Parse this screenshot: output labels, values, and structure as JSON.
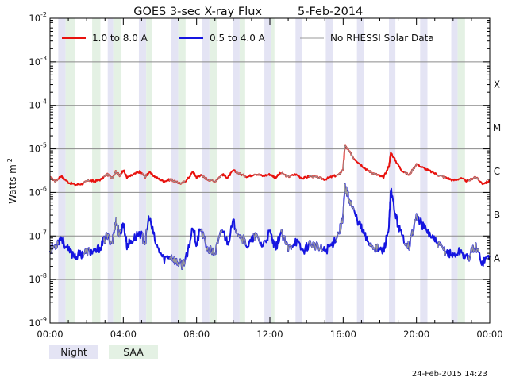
{
  "chart_data": {
    "type": "line",
    "title": "GOES 3-sec X-ray Flux",
    "date": "5-Feb-2014",
    "ylabel": "Watts m",
    "ylabel_exp": "-2",
    "yscale": "log",
    "ylim_exp": [
      -9,
      -2
    ],
    "y_tick_labels": [
      {
        "exp": -9,
        "base": "10",
        "sup": "-9"
      },
      {
        "exp": -8,
        "base": "10",
        "sup": "-8"
      },
      {
        "exp": -7,
        "base": "10",
        "sup": "-7"
      },
      {
        "exp": -6,
        "base": "10",
        "sup": "-6"
      },
      {
        "exp": -5,
        "base": "10",
        "sup": "-5"
      },
      {
        "exp": -4,
        "base": "10",
        "sup": "-4"
      },
      {
        "exp": -3,
        "base": "10",
        "sup": "-3"
      },
      {
        "exp": -2,
        "base": "10",
        "sup": "-2"
      }
    ],
    "x_ticks": [
      {
        "hour": 0,
        "label": "00:00"
      },
      {
        "hour": 4,
        "label": "04:00"
      },
      {
        "hour": 8,
        "label": "08:00"
      },
      {
        "hour": 12,
        "label": "12:00"
      },
      {
        "hour": 16,
        "label": "16:00"
      },
      {
        "hour": 20,
        "label": "20:00"
      },
      {
        "hour": 24,
        "label": "00:00"
      }
    ],
    "xlim_hours": [
      0,
      24
    ],
    "flare_classes": [
      {
        "label": "X",
        "exp": -4
      },
      {
        "label": "M",
        "exp": -5
      },
      {
        "label": "C",
        "exp": -6
      },
      {
        "label": "B",
        "exp": -7
      },
      {
        "label": "A",
        "exp": -8
      }
    ],
    "grid": "horizontal at each decade above 1e-8",
    "legend_position": "top",
    "series": [
      {
        "name": "1.0 to 8.0 A",
        "color": "#e8120e",
        "x_hours": [
          0.0,
          0.3,
          0.6,
          1.0,
          1.4,
          1.8,
          2.1,
          2.4,
          2.8,
          3.1,
          3.4,
          3.6,
          3.8,
          4.0,
          4.2,
          4.5,
          4.9,
          5.2,
          5.4,
          5.8,
          6.2,
          6.6,
          6.9,
          7.2,
          7.5,
          7.8,
          8.0,
          8.2,
          8.6,
          9.0,
          9.4,
          9.7,
          10.0,
          10.4,
          10.8,
          11.2,
          11.6,
          12.0,
          12.3,
          12.6,
          13.0,
          13.4,
          13.8,
          14.2,
          14.6,
          15.0,
          15.4,
          15.8,
          16.0,
          16.1,
          16.3,
          16.6,
          17.0,
          17.3,
          17.6,
          17.9,
          18.2,
          18.5,
          18.6,
          18.9,
          19.2,
          19.6,
          20.0,
          20.4,
          20.8,
          21.2,
          21.6,
          22.0,
          22.4,
          22.8,
          23.2,
          23.6,
          24.0
        ],
        "y": [
          2.2e-06,
          1.8e-06,
          2.4e-06,
          1.7e-06,
          1.5e-06,
          1.6e-06,
          1.9e-06,
          1.8e-06,
          2e-06,
          2.6e-06,
          2.2e-06,
          3.1e-06,
          2.4e-06,
          3.3e-06,
          2.2e-06,
          2.5e-06,
          3e-06,
          2.3e-06,
          2.9e-06,
          2.2e-06,
          1.8e-06,
          2e-06,
          1.7e-06,
          1.6e-06,
          2e-06,
          3e-06,
          2.2e-06,
          2.5e-06,
          2e-06,
          1.8e-06,
          2.6e-06,
          2.2e-06,
          3.2e-06,
          2.6e-06,
          2.3e-06,
          2.7e-06,
          2.4e-06,
          2.6e-06,
          2.2e-06,
          2.8e-06,
          2.3e-06,
          2.6e-06,
          2.1e-06,
          2.4e-06,
          2.2e-06,
          2e-06,
          2.3e-06,
          2.6e-06,
          3.5e-06,
          1.2e-05,
          9e-06,
          6e-06,
          4.2e-06,
          3.3e-06,
          2.8e-06,
          2.5e-06,
          2.2e-06,
          4e-06,
          8.3e-06,
          5e-06,
          3.2e-06,
          2.5e-06,
          4.5e-06,
          3.6e-06,
          3e-06,
          2.5e-06,
          2.2e-06,
          1.9e-06,
          2.1e-06,
          1.8e-06,
          2.3e-06,
          1.6e-06,
          1.8e-06
        ]
      },
      {
        "name": "0.5 to 4.0 A",
        "color": "#1515e0",
        "x_hours": [
          0.0,
          0.3,
          0.6,
          1.0,
          1.4,
          1.8,
          2.1,
          2.4,
          2.8,
          3.1,
          3.4,
          3.6,
          3.8,
          4.0,
          4.2,
          4.5,
          4.9,
          5.2,
          5.4,
          5.8,
          6.2,
          6.6,
          6.9,
          7.2,
          7.5,
          7.8,
          8.0,
          8.2,
          8.6,
          9.0,
          9.4,
          9.7,
          10.0,
          10.4,
          10.8,
          11.2,
          11.6,
          12.0,
          12.3,
          12.6,
          13.0,
          13.4,
          13.8,
          14.2,
          14.6,
          15.0,
          15.4,
          15.8,
          16.0,
          16.1,
          16.3,
          16.6,
          17.0,
          17.3,
          17.6,
          17.9,
          18.2,
          18.5,
          18.6,
          18.9,
          19.2,
          19.6,
          20.0,
          20.4,
          20.8,
          21.2,
          21.6,
          22.0,
          22.4,
          22.8,
          23.2,
          23.6,
          24.0
        ],
        "y": [
          5e-08,
          6e-08,
          9.5e-08,
          4.5e-08,
          3.5e-08,
          4e-08,
          4.5e-08,
          4e-08,
          6e-08,
          1e-07,
          7e-08,
          2.5e-07,
          1e-07,
          2e-07,
          6e-08,
          8e-08,
          1.2e-07,
          7e-08,
          2.8e-07,
          6e-08,
          3e-08,
          3.5e-08,
          2.5e-08,
          2.2e-08,
          3.5e-08,
          1.8e-07,
          6e-08,
          1.5e-07,
          5e-08,
          4e-08,
          1.4e-07,
          7e-08,
          2e-07,
          1e-07,
          6e-08,
          1e-07,
          6e-08,
          1.2e-07,
          5e-08,
          1.2e-07,
          5e-08,
          8e-08,
          4.5e-08,
          7e-08,
          5.5e-08,
          4.5e-08,
          6.5e-08,
          1.3e-07,
          3e-07,
          1.3e-06,
          8e-07,
          3.5e-07,
          1.5e-07,
          8e-08,
          6e-08,
          5e-08,
          4.5e-08,
          1.6e-07,
          1.1e-06,
          2.5e-07,
          1e-07,
          6e-08,
          2.8e-07,
          1.6e-07,
          1e-07,
          6e-08,
          4.5e-08,
          3.5e-08,
          4.5e-08,
          3e-08,
          6e-08,
          2.5e-08,
          3.5e-08
        ]
      },
      {
        "name": "No RHESSI Solar Data",
        "color": "#999999",
        "segments_hours": [
          [
            0.0,
            0.5
          ],
          [
            1.8,
            2.2
          ],
          [
            2.9,
            3.9
          ],
          [
            5.0,
            5.3
          ],
          [
            6.5,
            7.4
          ],
          [
            8.2,
            9.4
          ],
          [
            10.1,
            10.7
          ],
          [
            11.1,
            11.5
          ],
          [
            12.6,
            13.2
          ],
          [
            14.1,
            14.9
          ],
          [
            15.6,
            16.6
          ],
          [
            17.4,
            17.9
          ],
          [
            19.3,
            20.1
          ],
          [
            21.1,
            21.6
          ],
          [
            22.8,
            23.4
          ]
        ]
      }
    ],
    "night_intervals_hours": [
      [
        0.45,
        0.85
      ],
      [
        3.15,
        3.45
      ],
      [
        4.85,
        5.25
      ],
      [
        6.6,
        7.0
      ],
      [
        8.3,
        8.7
      ],
      [
        10.0,
        10.35
      ],
      [
        11.7,
        12.05
      ],
      [
        13.4,
        13.75
      ],
      [
        15.05,
        15.45
      ],
      [
        16.75,
        17.15
      ],
      [
        18.5,
        18.85
      ],
      [
        20.2,
        20.6
      ],
      [
        21.9,
        22.25
      ]
    ],
    "saa_intervals_hours": [
      [
        0.85,
        1.35
      ],
      [
        2.3,
        2.75
      ],
      [
        3.45,
        3.9
      ],
      [
        5.25,
        5.55
      ],
      [
        7.0,
        7.4
      ],
      [
        8.7,
        9.1
      ],
      [
        10.35,
        10.65
      ],
      [
        12.05,
        12.25
      ],
      [
        22.25,
        22.65
      ]
    ],
    "legend_bottom": {
      "night": "Night",
      "saa": "SAA",
      "night_color": "#e4e4f4",
      "saa_color": "#e4f1e4"
    },
    "timestamp": "24-Feb-2015 14:23"
  }
}
